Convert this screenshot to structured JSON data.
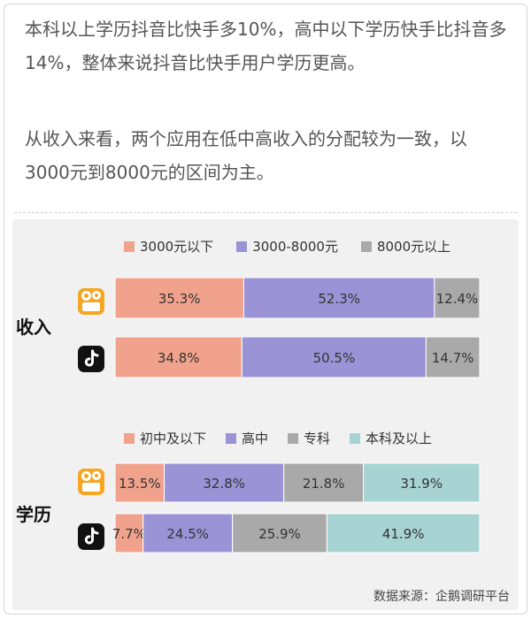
{
  "paragraphs": {
    "p1": "本科以上学历抖音比快手多10%，高中以下学历快手比抖音多14%，整体来说抖音比快手用户学历更高。",
    "p2": "从收入来看，两个应用在低中高收入的分配较为一致，以3000元到8000元的区间为主。"
  },
  "source": "数据来源：企鹅调研平台",
  "icons": {
    "kuaishou": "kuaishou-icon",
    "douyin": "douyin-icon"
  },
  "chart_data": [
    {
      "type": "bar",
      "orientation": "horizontal",
      "stacked": true,
      "normalized": true,
      "title": "收入",
      "categories": [
        "快手",
        "抖音"
      ],
      "series": [
        {
          "name": "3000元以下",
          "color": "#f0a28c",
          "values": [
            35.3,
            34.8
          ],
          "labels": [
            "35.3%",
            "34.8%"
          ]
        },
        {
          "name": "3000-8000元",
          "color": "#9a93d6",
          "values": [
            52.3,
            50.5
          ],
          "labels": [
            "52.3%",
            "50.5%"
          ]
        },
        {
          "name": "8000元以上",
          "color": "#a9a9a9",
          "values": [
            12.4,
            14.7
          ],
          "labels": [
            "12.4%",
            "14.7%"
          ]
        }
      ],
      "legend": "top",
      "grid": false
    },
    {
      "type": "bar",
      "orientation": "horizontal",
      "stacked": true,
      "normalized": true,
      "title": "学历",
      "categories": [
        "快手",
        "抖音"
      ],
      "series": [
        {
          "name": "初中及以下",
          "color": "#f0a28c",
          "values": [
            13.5,
            7.7
          ],
          "labels": [
            "13.5%",
            "7.7%"
          ]
        },
        {
          "name": "高中",
          "color": "#9a93d6",
          "values": [
            32.8,
            24.5
          ],
          "labels": [
            "32.8%",
            "24.5%"
          ]
        },
        {
          "name": "专科",
          "color": "#a9a9a9",
          "values": [
            21.8,
            25.9
          ],
          "labels": [
            "21.8%",
            "25.9%"
          ]
        },
        {
          "name": "本科及以上",
          "color": "#a7d3d3",
          "values": [
            31.9,
            41.9
          ],
          "labels": [
            "31.9%",
            "41.9%"
          ]
        }
      ],
      "legend": "top",
      "grid": false
    }
  ]
}
